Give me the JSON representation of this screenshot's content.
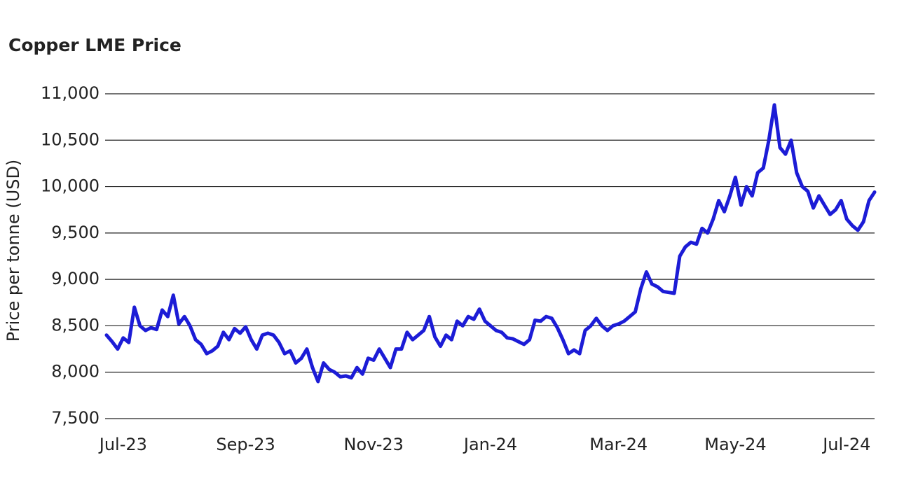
{
  "chart_data": {
    "type": "line",
    "title": "Copper LME Price",
    "y_label": "Price per tonne (USD)",
    "categories": [
      null,
      null,
      null,
      "Jul-23",
      null,
      null,
      null,
      null,
      null,
      null,
      null,
      null,
      null,
      null,
      null,
      null,
      null,
      null,
      null,
      null,
      null,
      null,
      null,
      null,
      null,
      "Sep-23",
      null,
      null,
      null,
      null,
      null,
      null,
      null,
      null,
      null,
      null,
      null,
      null,
      null,
      null,
      null,
      null,
      null,
      null,
      null,
      null,
      null,
      null,
      "Nov-23",
      null,
      null,
      null,
      null,
      null,
      null,
      null,
      null,
      null,
      null,
      null,
      null,
      null,
      null,
      null,
      null,
      null,
      null,
      null,
      null,
      "Jan-24",
      null,
      null,
      null,
      null,
      null,
      null,
      null,
      null,
      null,
      null,
      null,
      null,
      null,
      null,
      null,
      null,
      null,
      null,
      null,
      null,
      null,
      null,
      "Mar-24",
      null,
      null,
      null,
      null,
      null,
      null,
      null,
      null,
      null,
      null,
      null,
      null,
      null,
      null,
      null,
      null,
      null,
      null,
      null,
      null,
      "May-24",
      null,
      null,
      null,
      null,
      null,
      null,
      null,
      null,
      null,
      null,
      null,
      null,
      null,
      null,
      null,
      null,
      null,
      null,
      null,
      "Jul-24",
      null,
      null,
      null,
      null,
      null
    ],
    "series": [
      {
        "name": "Copper LME Price",
        "color": "#1c1cd6",
        "values": [
          8400,
          8330,
          8250,
          8370,
          8320,
          8700,
          8500,
          8450,
          8480,
          8460,
          8670,
          8600,
          8830,
          8520,
          8600,
          8500,
          8350,
          8300,
          8200,
          8230,
          8280,
          8430,
          8350,
          8470,
          8420,
          8490,
          8350,
          8250,
          8400,
          8420,
          8400,
          8320,
          8200,
          8230,
          8100,
          8150,
          8250,
          8050,
          7900,
          8100,
          8030,
          8000,
          7950,
          7960,
          7940,
          8050,
          7980,
          8150,
          8130,
          8250,
          8150,
          8050,
          8250,
          8250,
          8430,
          8350,
          8400,
          8450,
          8600,
          8380,
          8280,
          8400,
          8350,
          8550,
          8500,
          8600,
          8570,
          8680,
          8550,
          8500,
          8450,
          8430,
          8370,
          8360,
          8330,
          8300,
          8350,
          8560,
          8550,
          8600,
          8580,
          8480,
          8350,
          8200,
          8240,
          8200,
          8450,
          8500,
          8580,
          8500,
          8450,
          8500,
          8520,
          8550,
          8600,
          8650,
          8900,
          9080,
          8950,
          8920,
          8870,
          8860,
          8850,
          9250,
          9350,
          9400,
          9380,
          9550,
          9500,
          9650,
          9850,
          9730,
          9900,
          10100,
          9800,
          10000,
          9900,
          10150,
          10200,
          10500,
          10880,
          10420,
          10350,
          10500,
          10150,
          10000,
          9950,
          9770,
          9900,
          9800,
          9700,
          9750,
          9850,
          9650,
          9580,
          9530,
          9620,
          9850,
          9940
        ]
      }
    ],
    "ylim": [
      7500,
      11000
    ],
    "yticks": [
      {
        "value": 7500,
        "label": "7,500"
      },
      {
        "value": 8000,
        "label": "8,000"
      },
      {
        "value": 8500,
        "label": "8,500"
      },
      {
        "value": 9000,
        "label": "9,000"
      },
      {
        "value": 9500,
        "label": "9,500"
      },
      {
        "value": 10000,
        "label": "10,000"
      },
      {
        "value": 10500,
        "label": "10,500"
      },
      {
        "value": 11000,
        "label": "11,000"
      }
    ],
    "grid": true
  }
}
